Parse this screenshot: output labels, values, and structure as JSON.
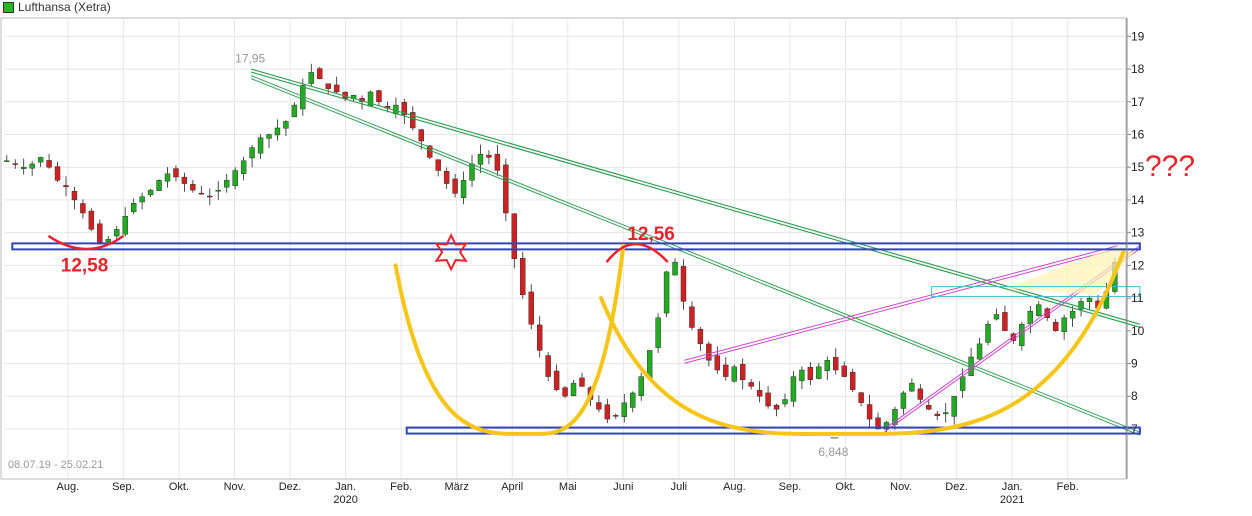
{
  "legend": {
    "label": "Lufthansa (Xetra)",
    "color": "#22bb22"
  },
  "date_range": "08.07.19 - 25.02.21",
  "colors": {
    "up": "#22aa22",
    "down": "#cc2222",
    "wick": "#222222",
    "support": "#3344bb",
    "trend": "#33a055",
    "channel": "#cc44cc",
    "arc": "#f5c518",
    "annotation": "#e8232a",
    "cyan_box": "#44bbcc",
    "grid": "#e6e6e6"
  },
  "annotations": {
    "high_label": "17,95",
    "low_label": "6,848",
    "left_support": "12,58",
    "mid_resistance": "12,56",
    "question": "???"
  },
  "chart_data": {
    "type": "candlestick",
    "title": "Lufthansa (Xetra)",
    "ylim": [
      5.5,
      19.5
    ],
    "y_ticks": [
      7,
      8,
      9,
      10,
      11,
      12,
      13,
      14,
      15,
      16,
      17,
      18,
      19
    ],
    "y_tick_labels": [
      "7",
      "8",
      "9",
      "10",
      "11",
      "12",
      "13",
      "14",
      "15",
      "16",
      "17",
      "18",
      "19"
    ],
    "x_ticks": [
      "Aug.",
      "Sep.",
      "Okt.",
      "Nov.",
      "Dez.",
      "Jan.",
      "Feb.",
      "März",
      "April",
      "Mai",
      "Juni",
      "Juli",
      "Aug.",
      "Sep.",
      "Okt.",
      "Nov.",
      "Dez.",
      "Jan.",
      "Feb."
    ],
    "x_tick_months": [
      1,
      2,
      3,
      4,
      5,
      6,
      7,
      8,
      9,
      10,
      11,
      12,
      13,
      14,
      15,
      16,
      17,
      18,
      19
    ],
    "year_labels": [
      {
        "label": "2020",
        "month": 6
      },
      {
        "label": "2021",
        "month": 18
      }
    ],
    "grid": true,
    "series": [
      {
        "closes": [
          15.2,
          15.1,
          15.0,
          15.1,
          15.3,
          15.0,
          14.6,
          14.4,
          14.0,
          13.6,
          13.1,
          12.7,
          12.8,
          13.1,
          13.5,
          13.9,
          14.1,
          14.3,
          14.6,
          14.8,
          14.7,
          14.5,
          14.3,
          14.2,
          14.1,
          14.3,
          14.6,
          14.9,
          15.2,
          15.6,
          15.9,
          16.0,
          16.2,
          16.4,
          16.9,
          17.5,
          17.9,
          17.7,
          17.4,
          17.3,
          17.1,
          17.2,
          17.0,
          17.3,
          17.0,
          16.8,
          16.9,
          16.6,
          16.2,
          15.8,
          15.3,
          14.9,
          14.5,
          14.2,
          14.6,
          15.1,
          15.4,
          15.3,
          14.9,
          13.6,
          12.2,
          11.1,
          10.2,
          9.4,
          8.6,
          8.2,
          8.0,
          8.4,
          8.3,
          7.9,
          7.6,
          7.3,
          7.4,
          7.8,
          8.1,
          8.6,
          9.4,
          10.4,
          11.8,
          12.1,
          10.9,
          10.1,
          9.6,
          9.1,
          8.8,
          8.6,
          8.9,
          8.5,
          8.3,
          8.0,
          7.7,
          7.6,
          7.9,
          8.6,
          8.8,
          8.5,
          8.9,
          9.1,
          8.8,
          8.6,
          8.2,
          7.8,
          7.3,
          7.0,
          7.2,
          7.6,
          8.1,
          8.4,
          7.9,
          7.6,
          7.4,
          7.5,
          8.0,
          8.6,
          9.2,
          9.6,
          10.2,
          10.5,
          10.0,
          9.7,
          10.2,
          10.6,
          10.8,
          10.4,
          10.0,
          10.4,
          10.6,
          10.9,
          11.0,
          10.7,
          11.2,
          12.1
        ]
      }
    ],
    "points": [
      {
        "label": "17,95",
        "month": 4.3,
        "value": 17.95
      },
      {
        "label": "6,848",
        "month": 14.8,
        "value": 6.848
      }
    ],
    "horizontal_lines": [
      {
        "value": 12.58,
        "from_month": 0,
        "to_month": 20.3
      },
      {
        "value": 6.95,
        "from_month": 7.1,
        "to_month": 20.3
      }
    ],
    "trend_lines": [
      {
        "from": [
          4.3,
          18.0
        ],
        "to": [
          20.3,
          10.2
        ]
      },
      {
        "from": [
          4.3,
          17.8
        ],
        "to": [
          20.3,
          6.9
        ]
      },
      {
        "from": [
          4.3,
          18.0
        ],
        "to": [
          20.3,
          10.2
        ]
      }
    ],
    "channel_lines": [
      {
        "from": [
          12.1,
          9.1
        ],
        "to": [
          19.9,
          12.6
        ]
      },
      {
        "from": [
          15.7,
          7.0
        ],
        "to": [
          20.3,
          12.6
        ]
      }
    ],
    "arcs": [
      {
        "from": [
          6.9,
          12.0
        ],
        "bottom": [
          9.3,
          6.85
        ],
        "to": [
          11.0,
          12.6
        ]
      },
      {
        "from": [
          10.6,
          11.0
        ],
        "bottom": [
          14.9,
          6.85
        ],
        "to": [
          20.0,
          12.4
        ]
      }
    ],
    "month_origin": "Juli 2019"
  }
}
